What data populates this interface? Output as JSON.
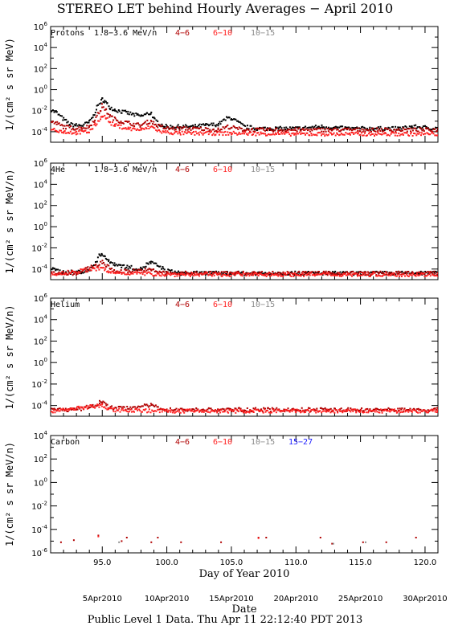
{
  "title": "STEREO LET behind Hourly Averages − April 2010",
  "footer": "Public Level 1 Data. Thu Apr 11 22:12:40 PDT 2013",
  "colors": {
    "black": "#000000",
    "dark_red": "#b00000",
    "red": "#ff2020",
    "gray": "#8c8c8c",
    "blue": "#2020ff"
  },
  "chart_data": [
    {
      "type": "scatter",
      "name": "Protons",
      "x": {
        "label": "Day of Year 2010",
        "range": [
          91,
          121
        ],
        "ticks": [
          "95.0",
          "100.0",
          "105.0",
          "110.0",
          "115.0",
          "120.0"
        ]
      },
      "y": {
        "label": "1/(cm² s sr MeV)",
        "scale": "log",
        "range": [
          1e-05,
          1000000.0
        ]
      },
      "legend": [
        {
          "text": "Protons",
          "color": "black"
        },
        {
          "text": "1.8−3.6 MeV/n",
          "color": "black"
        },
        {
          "text": "4−6",
          "color": "dark_red"
        },
        {
          "text": "6−10",
          "color": "red"
        },
        {
          "text": "10−15",
          "color": "gray"
        }
      ],
      "series": [
        {
          "name": "1.8−3.6 MeV/n",
          "color": "black",
          "points": [
            [
              91.0,
              0.012
            ],
            [
              91.5,
              0.006
            ],
            [
              92.0,
              0.0015
            ],
            [
              92.5,
              0.0005
            ],
            [
              93.0,
              0.0004
            ],
            [
              93.5,
              0.0004
            ],
            [
              94.0,
              0.0008
            ],
            [
              94.3,
              0.003
            ],
            [
              94.6,
              0.02
            ],
            [
              94.9,
              0.08
            ],
            [
              95.0,
              0.12
            ],
            [
              95.2,
              0.08
            ],
            [
              95.4,
              0.04
            ],
            [
              95.6,
              0.02
            ],
            [
              96.0,
              0.012
            ],
            [
              96.5,
              0.008
            ],
            [
              97.0,
              0.006
            ],
            [
              97.5,
              0.004
            ],
            [
              98.0,
              0.003
            ],
            [
              98.5,
              0.005
            ],
            [
              98.8,
              0.006
            ],
            [
              99.0,
              0.0015
            ],
            [
              99.5,
              0.0005
            ],
            [
              100.0,
              0.0003
            ],
            [
              101.0,
              0.0003
            ],
            [
              102.0,
              0.0003
            ],
            [
              103.0,
              0.0004
            ],
            [
              104.0,
              0.0005
            ],
            [
              104.7,
              0.002
            ],
            [
              105.0,
              0.002
            ],
            [
              105.5,
              0.0008
            ],
            [
              106.0,
              0.0003
            ],
            [
              107.0,
              0.0002
            ],
            [
              108.0,
              0.0002
            ],
            [
              110.0,
              0.0002
            ],
            [
              112.0,
              0.0003
            ],
            [
              114.0,
              0.0002
            ],
            [
              116.0,
              0.0002
            ],
            [
              118.0,
              0.0002
            ],
            [
              119.0,
              0.0003
            ],
            [
              120.0,
              0.00025
            ],
            [
              121.0,
              0.0002
            ]
          ]
        },
        {
          "name": "4−6",
          "color": "dark_red",
          "points": [
            [
              91.0,
              0.0008
            ],
            [
              91.5,
              0.0006
            ],
            [
              92.0,
              0.0003
            ],
            [
              93.0,
              0.0002
            ],
            [
              94.0,
              0.0003
            ],
            [
              94.5,
              0.002
            ],
            [
              94.9,
              0.012
            ],
            [
              95.0,
              0.03
            ],
            [
              95.3,
              0.01
            ],
            [
              95.6,
              0.003
            ],
            [
              96.0,
              0.0015
            ],
            [
              96.5,
              0.0009
            ],
            [
              97.0,
              0.0007
            ],
            [
              97.5,
              0.0005
            ],
            [
              98.0,
              0.0004
            ],
            [
              98.5,
              0.0008
            ],
            [
              98.8,
              0.001
            ],
            [
              99.2,
              0.0004
            ],
            [
              100.0,
              0.0002
            ],
            [
              102.0,
              0.0002
            ],
            [
              104.0,
              0.00015
            ],
            [
              104.7,
              0.0003
            ],
            [
              106.0,
              0.00015
            ],
            [
              110.0,
              0.00015
            ],
            [
              115.0,
              0.00015
            ],
            [
              121.0,
              0.00015
            ]
          ]
        },
        {
          "name": "6−10",
          "color": "red",
          "points": [
            [
              91.0,
              0.0002
            ],
            [
              92.0,
              0.0001
            ],
            [
              93.0,
              8e-05
            ],
            [
              94.0,
              0.0001
            ],
            [
              94.5,
              0.0005
            ],
            [
              94.9,
              0.002
            ],
            [
              95.0,
              0.004
            ],
            [
              95.3,
              0.002
            ],
            [
              95.6,
              0.0007
            ],
            [
              96.0,
              0.0004
            ],
            [
              97.0,
              0.0002
            ],
            [
              98.0,
              0.00015
            ],
            [
              98.8,
              0.0003
            ],
            [
              99.5,
              0.0001
            ],
            [
              101.0,
              7e-05
            ],
            [
              105.0,
              7e-05
            ],
            [
              110.0,
              6e-05
            ],
            [
              115.0,
              6e-05
            ],
            [
              121.0,
              6e-05
            ]
          ]
        },
        {
          "name": "10−15",
          "color": "gray",
          "points": []
        }
      ]
    },
    {
      "type": "scatter",
      "name": "4He",
      "x": {
        "label": "Day of Year 2010",
        "range": [
          91,
          121
        ],
        "ticks": [
          "95.0",
          "100.0",
          "105.0",
          "110.0",
          "115.0",
          "120.0"
        ]
      },
      "y": {
        "label": "1/(cm² s sr MeV/n)",
        "scale": "log",
        "range": [
          1e-05,
          1000000.0
        ]
      },
      "legend": [
        {
          "text": "4He",
          "color": "black"
        },
        {
          "text": "1.8−3.6 MeV/n",
          "color": "black"
        },
        {
          "text": "4−6",
          "color": "dark_red"
        },
        {
          "text": "6−10",
          "color": "red"
        },
        {
          "text": "10−15",
          "color": "gray"
        }
      ],
      "series": [
        {
          "name": "1.8−3.6 MeV/n",
          "color": "black",
          "points": [
            [
              91.0,
              0.0001
            ],
            [
              92.0,
              5e-05
            ],
            [
              93.0,
              5e-05
            ],
            [
              94.0,
              7e-05
            ],
            [
              94.5,
              0.0004
            ],
            [
              94.8,
              0.002
            ],
            [
              95.0,
              0.003
            ],
            [
              95.2,
              0.0015
            ],
            [
              95.5,
              0.0005
            ],
            [
              96.0,
              0.0003
            ],
            [
              96.5,
              0.0002
            ],
            [
              97.0,
              0.00015
            ],
            [
              98.0,
              0.0001
            ],
            [
              98.5,
              0.0003
            ],
            [
              98.8,
              0.0004
            ],
            [
              99.3,
              0.0002
            ],
            [
              100.0,
              7e-05
            ],
            [
              101.0,
              4e-05
            ],
            [
              103.0,
              4e-05
            ],
            [
              105.0,
              4e-05
            ],
            [
              110.0,
              4e-05
            ],
            [
              115.0,
              4e-05
            ],
            [
              121.0,
              4e-05
            ]
          ]
        },
        {
          "name": "4−6",
          "color": "dark_red",
          "points": [
            [
              91.0,
              4e-05
            ],
            [
              93.0,
              4e-05
            ],
            [
              94.8,
              0.0003
            ],
            [
              95.0,
              0.0005
            ],
            [
              95.3,
              0.0002
            ],
            [
              96.0,
              6e-05
            ],
            [
              98.8,
              8e-05
            ],
            [
              100.0,
              4e-05
            ],
            [
              110.0,
              4e-05
            ],
            [
              121.0,
              4e-05
            ]
          ]
        },
        {
          "name": "6−10",
          "color": "red",
          "points": [
            [
              91.0,
              3e-05
            ],
            [
              95.0,
              0.00012
            ],
            [
              95.5,
              5e-05
            ],
            [
              100.0,
              3e-05
            ],
            [
              110.0,
              3e-05
            ],
            [
              121.0,
              3e-05
            ]
          ]
        },
        {
          "name": "10−15",
          "color": "gray",
          "points": []
        }
      ]
    },
    {
      "type": "scatter",
      "name": "Helium",
      "x": {
        "label": "Day of Year 2010",
        "range": [
          91,
          121
        ],
        "ticks": [
          "95.0",
          "100.0",
          "105.0",
          "110.0",
          "115.0",
          "120.0"
        ]
      },
      "y": {
        "label": "1/(cm² s sr MeV/n)",
        "scale": "log",
        "range": [
          1e-05,
          1000000.0
        ]
      },
      "legend": [
        {
          "text": "Helium",
          "color": "black"
        },
        {
          "text": "4−6",
          "color": "dark_red"
        },
        {
          "text": "6−10",
          "color": "red"
        },
        {
          "text": "10−15",
          "color": "gray"
        }
      ],
      "series": [
        {
          "name": "4−6",
          "color": "dark_red",
          "points": [
            [
              91.0,
              4e-05
            ],
            [
              93.0,
              4e-05
            ],
            [
              94.5,
              0.0001
            ],
            [
              94.8,
              0.0002
            ],
            [
              95.0,
              0.00025
            ],
            [
              95.3,
              0.0001
            ],
            [
              96.0,
              5e-05
            ],
            [
              98.8,
              0.0001
            ],
            [
              100.0,
              4e-05
            ],
            [
              105.0,
              4e-05
            ],
            [
              110.0,
              4e-05
            ],
            [
              115.0,
              4e-05
            ],
            [
              121.0,
              4e-05
            ]
          ]
        },
        {
          "name": "6−10",
          "color": "red",
          "points": [
            [
              91.0,
              3e-05
            ],
            [
              95.0,
              0.0001
            ],
            [
              95.5,
              4e-05
            ],
            [
              100.0,
              3e-05
            ],
            [
              110.0,
              3e-05
            ],
            [
              121.0,
              3e-05
            ]
          ]
        },
        {
          "name": "10−15",
          "color": "gray",
          "points": []
        }
      ]
    },
    {
      "type": "scatter",
      "name": "Carbon",
      "x": {
        "label": "Day of Year 2010",
        "range": [
          91,
          121
        ],
        "ticks": [
          "95.0",
          "100.0",
          "105.0",
          "110.0",
          "115.0",
          "120.0"
        ],
        "date_ticks": [
          [
            95,
            "5Apr2010"
          ],
          [
            100,
            "10Apr2010"
          ],
          [
            105,
            "15Apr2010"
          ],
          [
            110,
            "20Apr2010"
          ],
          [
            115,
            "25Apr2010"
          ],
          [
            120,
            "30Apr2010"
          ]
        ],
        "date_label": "Date"
      },
      "y": {
        "label": "1/(cm² s sr MeV/n)",
        "scale": "log",
        "range": [
          1e-06,
          10000.0
        ]
      },
      "legend": [
        {
          "text": "Carbon",
          "color": "black"
        },
        {
          "text": "4−6",
          "color": "dark_red"
        },
        {
          "text": "6−10",
          "color": "red"
        },
        {
          "text": "10−15",
          "color": "gray"
        },
        {
          "text": "15−27",
          "color": "blue"
        }
      ],
      "series": [
        {
          "name": "4−6",
          "color": "dark_red",
          "points": [
            [
              91.8,
              8e-06
            ],
            [
              92.8,
              1.2e-05
            ],
            [
              94.7,
              3e-05
            ],
            [
              96.5,
              1e-05
            ],
            [
              96.9,
              2e-05
            ],
            [
              98.8,
              8e-06
            ],
            [
              99.3,
              2e-05
            ],
            [
              101.1,
              8e-06
            ],
            [
              104.2,
              8e-06
            ],
            [
              107.1,
              2e-05
            ],
            [
              107.7,
              2e-05
            ],
            [
              111.9,
              2e-05
            ],
            [
              112.8,
              6e-06
            ],
            [
              115.2,
              8e-06
            ],
            [
              117.0,
              8e-06
            ],
            [
              119.3,
              2e-05
            ]
          ]
        },
        {
          "name": "6−10",
          "color": "red",
          "points": [
            [
              94.7,
              2.5e-05
            ],
            [
              107.1,
              1.8e-05
            ]
          ]
        },
        {
          "name": "10−15",
          "color": "gray",
          "points": [
            [
              96.3,
              8e-06
            ],
            [
              112.9,
              6e-06
            ],
            [
              115.4,
              8e-06
            ]
          ]
        },
        {
          "name": "15−27",
          "color": "blue",
          "points": []
        }
      ]
    }
  ]
}
